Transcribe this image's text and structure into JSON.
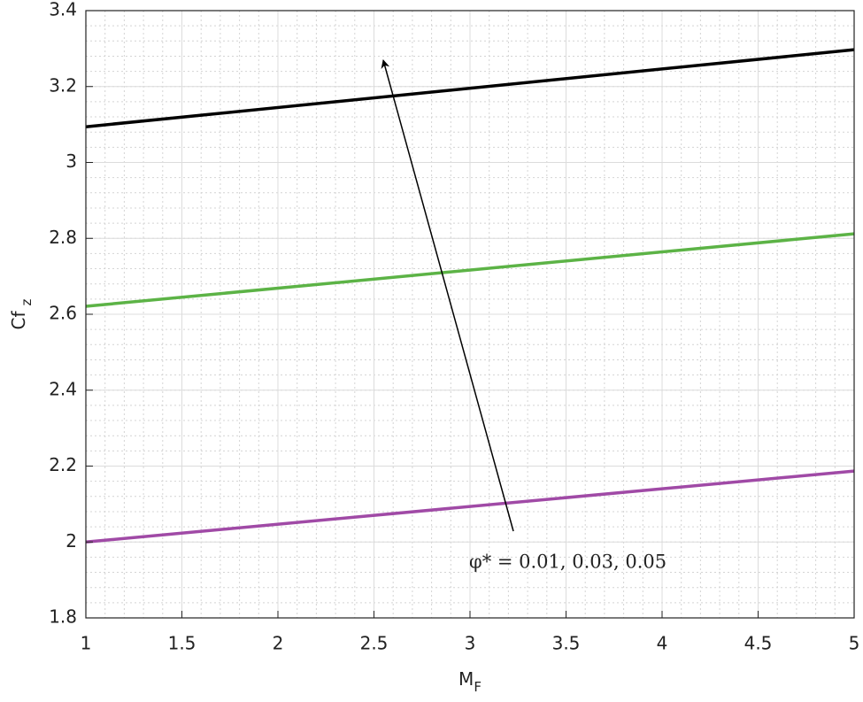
{
  "chart_data": {
    "type": "line",
    "xlabel": {
      "text": "M",
      "subscript": "F"
    },
    "ylabel": {
      "text": "Cf",
      "subscript": "z"
    },
    "x": [
      1,
      5
    ],
    "series": [
      {
        "color": "#a04aa6",
        "values": [
          2.0,
          2.187
        ]
      },
      {
        "color": "#5cb346",
        "values": [
          2.621,
          2.812
        ]
      },
      {
        "color": "#000000",
        "values": [
          3.094,
          3.297
        ]
      }
    ],
    "annotation": "φ* = 0.01, 0.03, 0.05",
    "xlim": [
      1,
      5
    ],
    "xticks": [
      1,
      1.5,
      2,
      2.5,
      3,
      3.5,
      4,
      4.5,
      5
    ],
    "ylim": [
      1.8,
      3.4
    ],
    "yticks": [
      1.8,
      2,
      2.2,
      2.4,
      2.6,
      2.8,
      3,
      3.2,
      3.4
    ],
    "grid": true,
    "minor_grid": true
  }
}
